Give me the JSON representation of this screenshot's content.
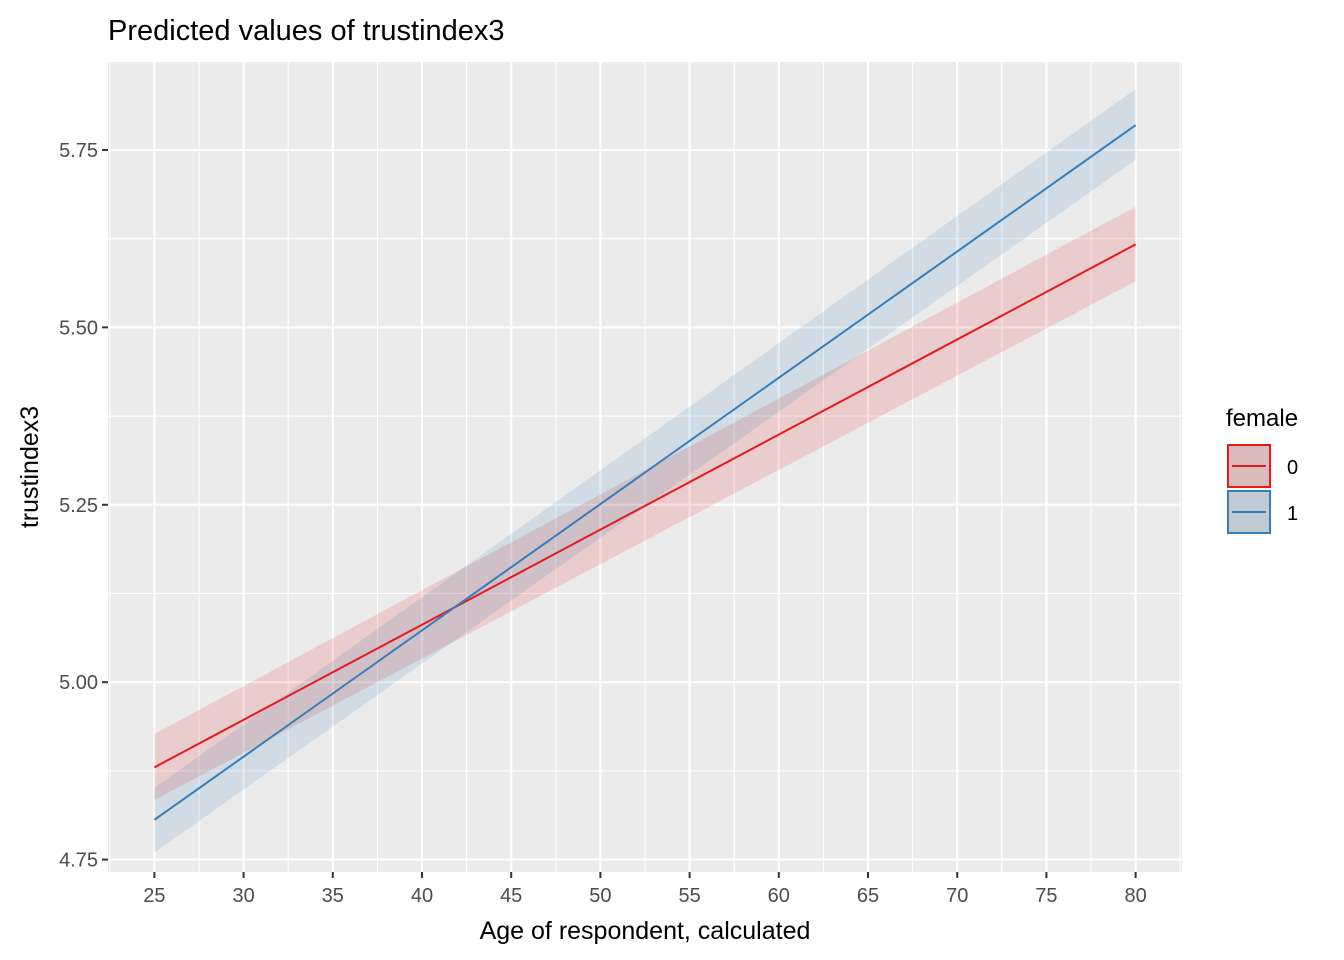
{
  "chart_data": {
    "type": "line",
    "title": "Predicted values of trustindex3",
    "xlabel": "Age of respondent, calculated",
    "ylabel": "trustindex3",
    "xlim": [
      22.4,
      82.6
    ],
    "ylim": [
      4.7325,
      5.874
    ],
    "x_ticks": [
      25,
      30,
      35,
      40,
      45,
      50,
      55,
      60,
      65,
      70,
      75,
      80
    ],
    "y_ticks": [
      4.75,
      5.0,
      5.25,
      5.5,
      5.75
    ],
    "y_tick_labels": [
      "4.75",
      "5.00",
      "5.25",
      "5.50",
      "5.75"
    ],
    "grid": true,
    "legend": {
      "title": "female",
      "position": "right",
      "entries": [
        "0",
        "1"
      ]
    },
    "series": [
      {
        "name": "0",
        "color": "#e41a1c",
        "x": [
          25,
          80
        ],
        "y": [
          4.88,
          5.617
        ],
        "ci_low": [
          4.834,
          5.565
        ],
        "ci_high": [
          4.927,
          5.67
        ]
      },
      {
        "name": "1",
        "color": "#377eb8",
        "x": [
          25,
          80
        ],
        "y": [
          4.806,
          5.785
        ],
        "ci_low": [
          4.76,
          5.736
        ],
        "ci_high": [
          4.851,
          5.836
        ]
      }
    ]
  }
}
